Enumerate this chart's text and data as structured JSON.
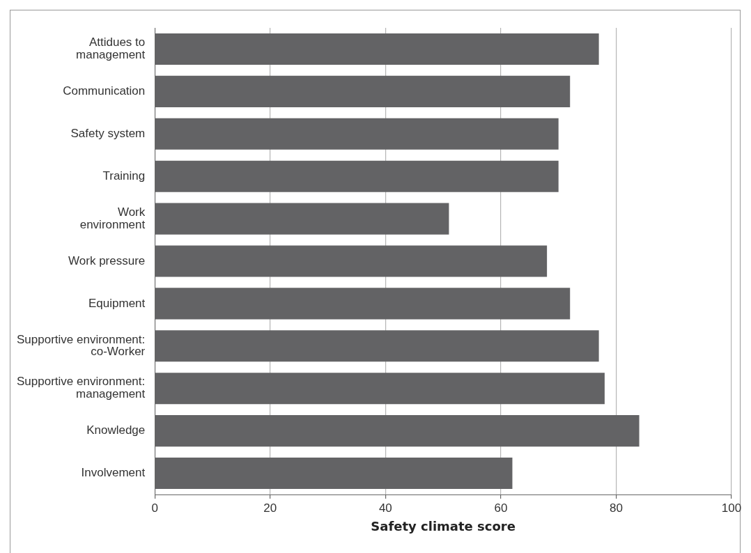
{
  "chart_data": {
    "type": "bar",
    "orientation": "horizontal",
    "xlabel": "Safety climate score",
    "categories": [
      "Attidues to\nmanagement",
      "Communication",
      "Safety system",
      "Training",
      "Work\nenvironment",
      "Work pressure",
      "Equipment",
      "Supportive environment:\nco-Worker",
      "Supportive environment:\nmanagement",
      "Knowledge",
      "Involvement"
    ],
    "values": [
      77,
      72,
      70,
      70,
      51,
      68,
      72,
      77,
      78,
      84,
      62
    ],
    "color": "#636365",
    "xlim": [
      0,
      100
    ],
    "xticks": [
      0,
      20,
      40,
      60,
      80,
      100
    ],
    "grid": "x",
    "legend": false
  }
}
